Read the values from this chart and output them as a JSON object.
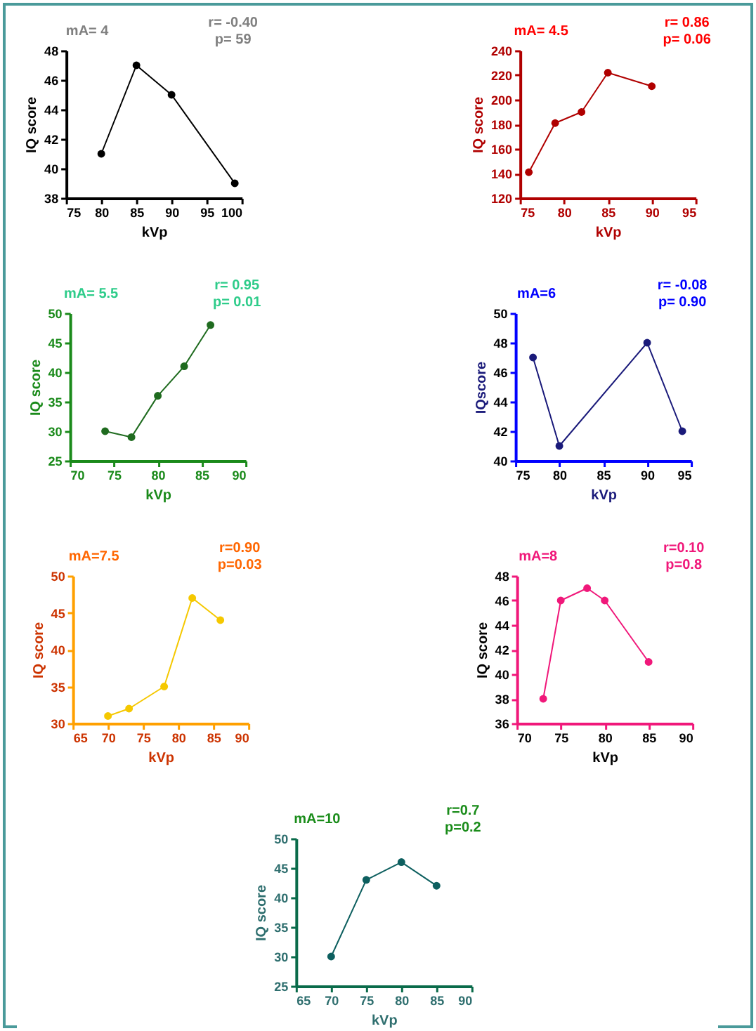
{
  "chart_data": [
    {
      "type": "line",
      "xlabel": "kVp",
      "ylabel": "IQ score",
      "annotations": [
        "mA= 4",
        "r= -0.40",
        "p= 59"
      ],
      "x": [
        80,
        85,
        90,
        99
      ],
      "series": [
        {
          "color": "#000000",
          "values": [
            41,
            47,
            45,
            39
          ]
        }
      ],
      "xlim": [
        75,
        100
      ],
      "xticks": [
        75,
        80,
        85,
        90,
        95,
        100
      ],
      "ylim": [
        38,
        48
      ],
      "yticks": [
        38,
        40,
        42,
        44,
        46,
        48
      ],
      "marker": "circle",
      "grid": false
    },
    {
      "type": "line",
      "xlabel": "kVp",
      "ylabel": "IQ score",
      "annotations": [
        "mA= 4.5",
        "r= 0.86",
        "p= 0.06"
      ],
      "x": [
        76,
        79,
        82,
        85,
        90
      ],
      "series": [
        {
          "color": "#b00000",
          "values": [
            141,
            181,
            190,
            222,
            211
          ]
        }
      ],
      "xlim": [
        75,
        95
      ],
      "xticks": [
        75,
        80,
        85,
        90,
        95
      ],
      "ylim": [
        120,
        240
      ],
      "yticks": [
        120,
        140,
        160,
        180,
        200,
        220,
        240
      ],
      "marker": "circle",
      "grid": false
    },
    {
      "type": "line",
      "xlabel": "kVp",
      "ylabel": "IQ score",
      "annotations": [
        "mA= 5.5",
        "r= 0.95",
        "p= 0.01"
      ],
      "x": [
        74,
        77,
        80,
        83,
        86
      ],
      "series": [
        {
          "color": "#1f6b1f",
          "values": [
            30,
            29,
            36,
            41,
            48
          ]
        }
      ],
      "xlim": [
        70,
        90
      ],
      "xticks": [
        70,
        75,
        80,
        85,
        90
      ],
      "ylim": [
        25,
        50
      ],
      "yticks": [
        25,
        30,
        35,
        40,
        45,
        50
      ],
      "marker": "circle",
      "grid": false
    },
    {
      "type": "line",
      "xlabel": "kVp",
      "ylabel": "IQscore",
      "annotations": [
        "mA=6",
        "r= -0.08",
        "p= 0.90"
      ],
      "x": [
        77,
        80,
        90,
        94
      ],
      "series": [
        {
          "color": "#1a1a7a",
          "values": [
            47,
            41,
            48,
            42
          ]
        }
      ],
      "xlim": [
        75,
        95
      ],
      "xticks": [
        75,
        80,
        85,
        90,
        95
      ],
      "ylim": [
        40,
        50
      ],
      "yticks": [
        40,
        42,
        44,
        46,
        48,
        50
      ],
      "marker": "circle",
      "grid": false
    },
    {
      "type": "line",
      "xlabel": "kVp",
      "ylabel": "IQ score",
      "annotations": [
        "mA=7.5",
        "r=0.90",
        "p=0.03"
      ],
      "x": [
        70,
        73,
        78,
        82,
        86
      ],
      "series": [
        {
          "color": "#f5c800",
          "values": [
            31,
            32,
            35,
            47,
            44
          ]
        }
      ],
      "xlim": [
        65,
        90
      ],
      "xticks": [
        65,
        70,
        75,
        80,
        85,
        90
      ],
      "ylim": [
        30,
        50
      ],
      "yticks": [
        30,
        35,
        40,
        45,
        50
      ],
      "marker": "circle",
      "grid": false
    },
    {
      "type": "line",
      "xlabel": "kVp",
      "ylabel": "IQ score",
      "annotations": [
        "mA=8",
        "r=0.10",
        "p=0.8"
      ],
      "x": [
        73,
        75,
        78,
        80,
        85
      ],
      "series": [
        {
          "color": "#f0187a",
          "values": [
            38,
            46,
            47,
            46,
            41
          ]
        }
      ],
      "xlim": [
        70,
        90
      ],
      "xticks": [
        70,
        75,
        80,
        85,
        90
      ],
      "ylim": [
        36,
        48
      ],
      "yticks": [
        36,
        38,
        40,
        42,
        44,
        46,
        48
      ],
      "marker": "circle",
      "grid": false
    },
    {
      "type": "line",
      "xlabel": "kVp",
      "ylabel": "IQ score",
      "annotations": [
        "mA=10",
        "r=0.7",
        "p=0.2"
      ],
      "x": [
        70,
        75,
        80,
        85
      ],
      "series": [
        {
          "color": "#0d5f5f",
          "values": [
            30,
            43,
            46,
            42
          ]
        }
      ],
      "xlim": [
        65,
        90
      ],
      "xticks": [
        65,
        70,
        75,
        80,
        85,
        90
      ],
      "ylim": [
        25,
        50
      ],
      "yticks": [
        25,
        30,
        35,
        40,
        45,
        50
      ],
      "marker": "circle",
      "grid": false
    }
  ]
}
